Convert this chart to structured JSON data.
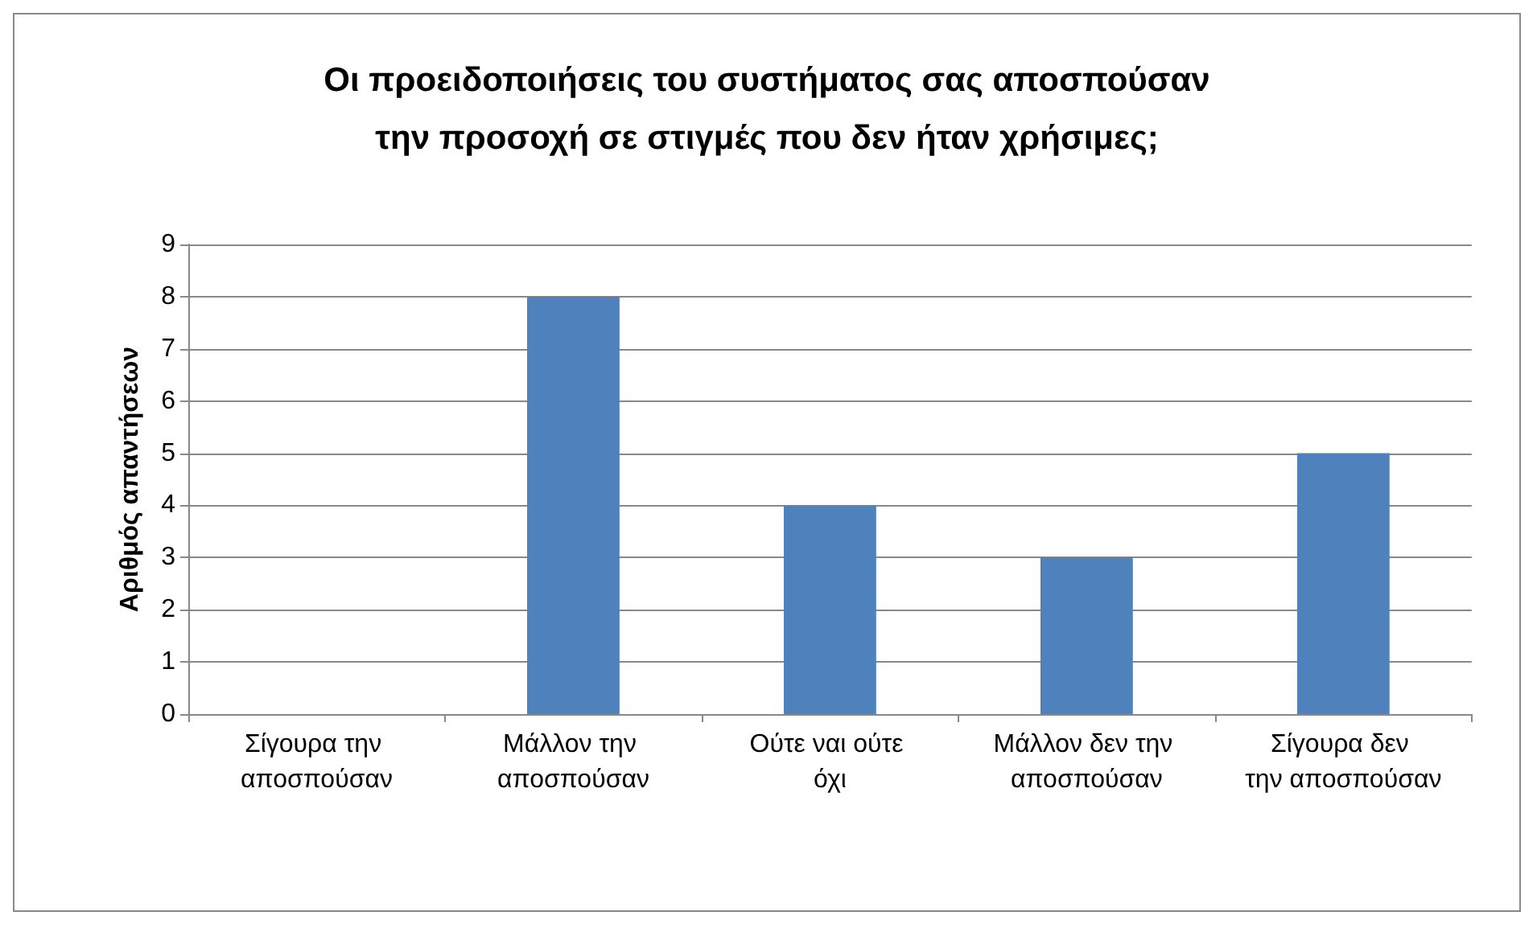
{
  "chart_data": {
    "type": "bar",
    "title": "Οι προειδοποιήσεις του συστήματος σας αποσπούσαν\nτην προσοχή σε στιγμές που δεν ήταν χρήσιμες;",
    "ylabel": "Αριθμός απαντήσεων",
    "categories": [
      "Σίγουρα την αποσπούσαν",
      "Μάλλον την αποσπούσαν",
      "Ούτε ναι ούτε όχι",
      "Μάλλον δεν την αποσπούσαν",
      "Σίγουρα δεν την αποσπούσαν"
    ],
    "values": [
      0,
      8,
      4,
      3,
      5
    ],
    "color": "#4f81bd",
    "ylim": [
      0,
      9
    ],
    "yticks": [
      0,
      1,
      2,
      3,
      4,
      5,
      6,
      7,
      8,
      9
    ],
    "grid": "y"
  }
}
